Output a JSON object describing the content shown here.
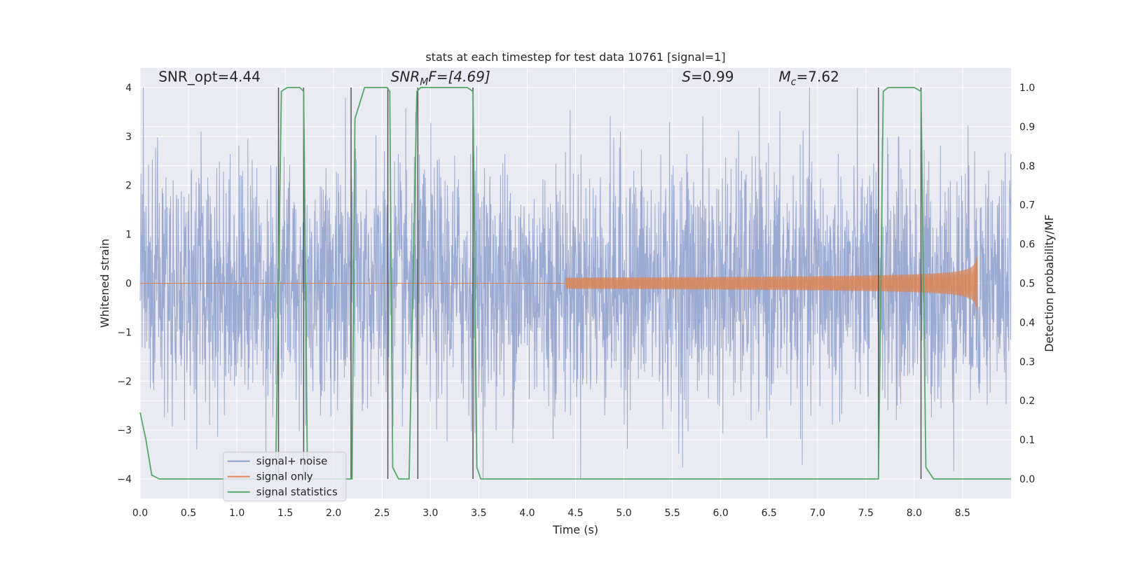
{
  "chart_data": {
    "type": "line",
    "title": "stats at each timestep for test data 10761 [signal=1]",
    "xlabel": "Time (s)",
    "ylabel": "Whitened strain",
    "y2label": "Detection probability/MF",
    "xlim": [
      0.0,
      9.0
    ],
    "ylim": [
      -4.4,
      4.4
    ],
    "y2lim": [
      -0.05,
      1.05
    ],
    "x_ticks": [
      "0.0",
      "0.5",
      "1.0",
      "1.5",
      "2.0",
      "2.5",
      "3.0",
      "3.5",
      "4.0",
      "4.5",
      "5.0",
      "5.5",
      "6.0",
      "6.5",
      "7.0",
      "7.5",
      "8.0",
      "8.5"
    ],
    "y_ticks": [
      "−4",
      "−3",
      "−2",
      "−1",
      "0",
      "1",
      "2",
      "3",
      "4"
    ],
    "y2_ticks": [
      "0.0",
      "0.1",
      "0.2",
      "0.3",
      "0.4",
      "0.5",
      "0.6",
      "0.7",
      "0.8",
      "0.9",
      "1.0"
    ],
    "grid": true,
    "legend_position": "lower-left",
    "annotations": {
      "snr_opt": "SNR_opt=4.44",
      "snr_mf_main": "SNR",
      "snr_mf_sub": "M",
      "snr_mf_rest": "F=[4.69]",
      "s_main": "S",
      "s_rest": "=0.99",
      "mc_main": "M",
      "mc_sub": "c",
      "mc_rest": "=7.62"
    },
    "series": [
      {
        "name": "signal+ noise",
        "color": "#8c9fcc",
        "kind": "noise",
        "amplitude_range": [
          -4.0,
          4.0
        ]
      },
      {
        "name": "signal only",
        "color": "#dd8452",
        "kind": "chirp",
        "start": 4.4,
        "peak_time": 8.65,
        "peak_amplitude": 0.55
      },
      {
        "name": "signal statistics",
        "color": "#55a868",
        "axis": "y2",
        "x": [
          0.0,
          0.06,
          0.12,
          0.2,
          1.4,
          1.46,
          1.52,
          1.6,
          1.65,
          1.69,
          1.73,
          1.78,
          2.15,
          2.19,
          2.22,
          2.27,
          2.32,
          2.55,
          2.58,
          2.61,
          2.67,
          2.73,
          2.78,
          2.86,
          2.9,
          2.95,
          3.0,
          3.38,
          3.44,
          3.48,
          3.52,
          3.6,
          3.65,
          3.7,
          5.8,
          6.2,
          7.63,
          7.68,
          7.73,
          7.8,
          8.0,
          8.07,
          8.12,
          8.2,
          8.3,
          8.6,
          9.0
        ],
        "y": [
          0.17,
          0.1,
          0.01,
          0.0,
          0.0,
          0.99,
          1.0,
          1.0,
          1.0,
          0.99,
          0.0,
          0.0,
          0.0,
          0.0,
          0.92,
          0.96,
          1.0,
          1.0,
          0.99,
          0.03,
          0.0,
          0.0,
          0.0,
          0.99,
          1.0,
          1.0,
          1.0,
          1.0,
          0.99,
          0.03,
          0.0,
          0.0,
          0.0,
          0.0,
          0.0,
          0.0,
          0.0,
          0.99,
          1.0,
          1.0,
          1.0,
          0.99,
          0.03,
          0.0,
          0.0,
          0.0,
          0.0
        ]
      },
      {
        "name": "",
        "color": "#555555",
        "kind": "vlines",
        "axis": "y2",
        "x": [
          1.43,
          1.69,
          2.18,
          2.56,
          2.87,
          3.44,
          7.63,
          8.07
        ]
      }
    ]
  },
  "legend": {
    "items": [
      {
        "label": "signal+ noise",
        "color": "#8c9fcc"
      },
      {
        "label": "signal only",
        "color": "#dd8452"
      },
      {
        "label": "signal statistics",
        "color": "#55a868"
      }
    ]
  }
}
